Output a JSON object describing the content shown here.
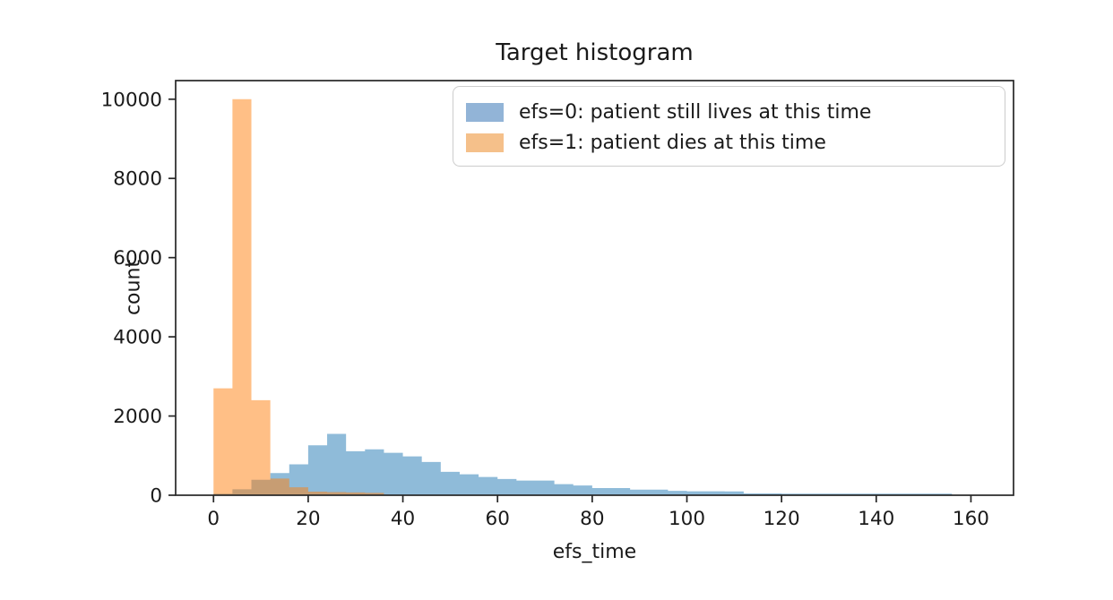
{
  "chart_data": {
    "type": "histogram",
    "title": "Target histogram",
    "xlabel": "efs_time",
    "ylabel": "count",
    "xlim": [
      -8,
      169
    ],
    "ylim": [
      0,
      10470
    ],
    "x_ticks": [
      0,
      20,
      40,
      60,
      80,
      100,
      120,
      140,
      160
    ],
    "y_ticks": [
      0,
      2000,
      4000,
      6000,
      8000,
      10000
    ],
    "grid": false,
    "legend_position": "upper right",
    "alpha": 0.5,
    "series": [
      {
        "name": "efs=0: patient still lives at this time",
        "color": "#1f77b4",
        "legend_swatch_color": "#92b4d7",
        "bin_start": 0,
        "bin_width": 4,
        "counts": [
          40,
          150,
          390,
          560,
          780,
          1260,
          1550,
          1110,
          1160,
          1070,
          980,
          840,
          590,
          530,
          460,
          410,
          370,
          370,
          280,
          245,
          180,
          180,
          140,
          140,
          110,
          100,
          100,
          95,
          45,
          45,
          40,
          40,
          40,
          40,
          40,
          40,
          40,
          40,
          40
        ]
      },
      {
        "name": "efs=1: patient dies at this time",
        "color": "#ff7f0e",
        "legend_swatch_color": "#f5c08a",
        "bin_start": 0,
        "bin_width": 4,
        "counts": [
          2700,
          10000,
          2400,
          420,
          200,
          90,
          80,
          70,
          60
        ]
      }
    ],
    "axis_color": "#262626",
    "text_color": "#1a1a1a"
  }
}
